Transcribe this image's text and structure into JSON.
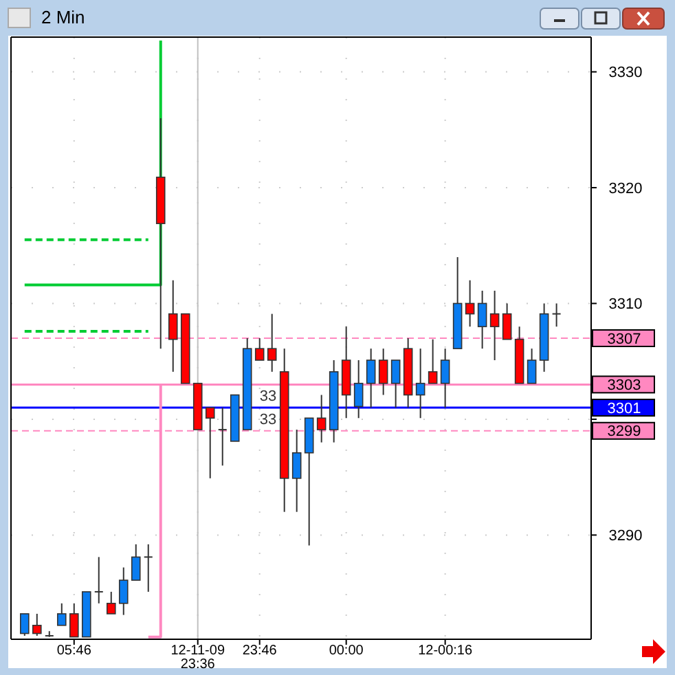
{
  "chart_data": {
    "type": "candlestick",
    "title": "2 Min",
    "categories": [
      null,
      null,
      null,
      null,
      "05:46",
      null,
      null,
      null,
      null,
      null,
      null,
      null,
      null,
      null,
      "12-11-09 23:36",
      null,
      null,
      null,
      null,
      "23:46",
      null,
      null,
      null,
      null,
      null,
      null,
      "00:00",
      null,
      null,
      null,
      null,
      null,
      null,
      null,
      "12-00:16",
      null,
      null,
      null,
      null,
      null,
      null,
      null,
      null,
      null
    ],
    "ohlc": [
      [
        3281.5,
        3283.2,
        3281.3,
        3283.2
      ],
      [
        3282.2,
        3283.2,
        3281.3,
        3281.5
      ],
      [
        3281.3,
        3281.7,
        3281.2,
        3281.3
      ],
      [
        3282.2,
        3284.1,
        3282.2,
        3283.2
      ],
      [
        3283.2,
        3284.1,
        3281.2,
        3281.2
      ],
      [
        3281.2,
        3285.1,
        3281.2,
        3285.1
      ],
      [
        3285.1,
        3288.1,
        3284.1,
        3285.1
      ],
      [
        3284.1,
        3285.1,
        3283.2,
        3283.2
      ],
      [
        3284.1,
        3287.2,
        3283.1,
        3286.1
      ],
      [
        3286.1,
        3289.2,
        3286.1,
        3288.1
      ],
      [
        3288.1,
        3289.2,
        3285.1,
        3288.1
      ],
      [
        3320.9,
        3326,
        3306.1,
        3316.9
      ],
      [
        3309.1,
        3312,
        3304.1,
        3306.9
      ],
      [
        3309.1,
        3309.1,
        3303.1,
        3303.1
      ],
      [
        3303.1,
        3303.1,
        3299.1,
        3299.1
      ],
      [
        3301,
        3301,
        3294.9,
        3300.1
      ],
      [
        3299.1,
        3301,
        3296,
        3299.1
      ],
      [
        3298.1,
        3302.1,
        3298.1,
        3302.1
      ],
      [
        3299.1,
        3307,
        3299.1,
        3306.1
      ],
      [
        3306.1,
        3307,
        3305.1,
        3305.1
      ],
      [
        3306.1,
        3309.1,
        3304.1,
        3305.1
      ],
      [
        3304.1,
        3306.1,
        3292,
        3294.9
      ],
      [
        3294.9,
        3299.1,
        3292,
        3297.1
      ],
      [
        3297.1,
        3300.1,
        3289.1,
        3300.1
      ],
      [
        3300.1,
        3302.1,
        3298,
        3299.1
      ],
      [
        3299.1,
        3305.1,
        3298,
        3304.1
      ],
      [
        3305.1,
        3308,
        3300.1,
        3302.1
      ],
      [
        3301.1,
        3305.1,
        3300.1,
        3303.1
      ],
      [
        3303.1,
        3306.1,
        3301,
        3305.1
      ],
      [
        3305.1,
        3306.1,
        3302.1,
        3303.1
      ],
      [
        3303.1,
        3305.1,
        3301,
        3305.1
      ],
      [
        3306.1,
        3307,
        3301,
        3302.1
      ],
      [
        3302.1,
        3306.1,
        3300.1,
        3303.1
      ],
      [
        3304.1,
        3306.9,
        3303.1,
        3303.1
      ],
      [
        3303.1,
        3306.1,
        3301,
        3305.1
      ],
      [
        3306.1,
        3314,
        3306.1,
        3310
      ],
      [
        3310,
        3312,
        3308,
        3309.1
      ],
      [
        3308,
        3311.1,
        3306.1,
        3310
      ],
      [
        3309.1,
        3311.1,
        3305.1,
        3308
      ],
      [
        3309.1,
        3310,
        3306.9,
        3306.9
      ],
      [
        3306.9,
        3308,
        3303.1,
        3303.1
      ],
      [
        3303.1,
        3306.1,
        3303.1,
        3305.1
      ],
      [
        3305.1,
        3310,
        3304.1,
        3309.1
      ],
      [
        3309.1,
        3310,
        3308,
        3309.1
      ]
    ],
    "colors": [
      "#0a7cf0",
      "#ff0000",
      "#333333",
      "#0a7cf0",
      "#ff0000",
      "#0a7cf0",
      "#333333",
      "#ff0000",
      "#0a7cf0",
      "#0a7cf0",
      "#333333",
      "#ff0000",
      "#ff0000",
      "#ff0000",
      "#ff0000",
      "#ff0000",
      "#333333",
      "#0a7cf0",
      "#0a7cf0",
      "#ff0000",
      "#ff0000",
      "#ff0000",
      "#0a7cf0",
      "#0a7cf0",
      "#ff0000",
      "#0a7cf0",
      "#ff0000",
      "#0a7cf0",
      "#0a7cf0",
      "#ff0000",
      "#0a7cf0",
      "#ff0000",
      "#0a7cf0",
      "#ff0000",
      "#0a7cf0",
      "#0a7cf0",
      "#ff0000",
      "#0a7cf0",
      "#ff0000",
      "#ff0000",
      "#ff0000",
      "#0a7cf0",
      "#0a7cf0",
      "#333333"
    ],
    "series": [
      {
        "type": "step",
        "color": "#00cc33",
        "values": [
          3311.6,
          3311.6,
          3311.6,
          3311.6,
          3311.6,
          3311.6,
          3311.6,
          3311.6,
          3311.6,
          3311.6,
          3311.6,
          3332.7,
          null,
          null,
          null,
          null,
          null,
          null,
          null,
          null,
          null,
          null,
          null,
          null,
          null,
          null,
          null,
          null,
          null,
          null,
          null,
          null,
          null,
          null,
          null,
          null,
          null,
          null,
          null,
          null,
          null,
          null,
          null,
          null
        ]
      },
      {
        "type": "line",
        "color": "#00cc33",
        "line_style": "dashed",
        "values": [
          3315.5,
          3315.5,
          3315.5,
          3315.5,
          3315.5,
          3315.5,
          3315.5,
          3315.5,
          3315.5,
          3315.5,
          3315.5,
          null,
          null,
          null,
          null,
          null,
          null,
          null,
          null,
          null,
          null,
          null,
          null,
          null,
          null,
          null,
          null,
          null,
          null,
          null,
          null,
          null,
          null,
          null,
          null,
          null,
          null,
          null,
          null,
          null,
          null,
          null,
          null,
          null
        ]
      },
      {
        "type": "line",
        "color": "#00cc33",
        "line_style": "dashed",
        "values": [
          3307.6,
          3307.6,
          3307.6,
          3307.6,
          3307.6,
          3307.6,
          3307.6,
          3307.6,
          3307.6,
          3307.6,
          3307.6,
          null,
          null,
          null,
          null,
          null,
          null,
          null,
          null,
          null,
          null,
          null,
          null,
          null,
          null,
          null,
          null,
          null,
          null,
          null,
          null,
          null,
          null,
          null,
          null,
          null,
          null,
          null,
          null,
          null,
          null,
          null,
          null,
          null
        ]
      },
      {
        "type": "step",
        "color": "#ff88c0",
        "values": [
          null,
          null,
          null,
          null,
          null,
          null,
          null,
          null,
          null,
          null,
          3281.2,
          3303,
          null,
          null,
          null,
          null,
          null,
          null,
          null,
          null,
          null,
          null,
          null,
          null,
          null,
          null,
          null,
          null,
          null,
          null,
          null,
          null,
          null,
          null,
          null,
          null,
          null,
          null,
          null,
          null,
          null,
          null,
          null,
          null
        ]
      }
    ],
    "ref_lines": [
      {
        "axis": "x",
        "value": "12-11-09 23:36",
        "color": "#c0c0c0",
        "line_style": "solid"
      },
      {
        "axis": "y",
        "value": 3307,
        "label": "3307",
        "color": "#ff88c0",
        "line_style": "dashed"
      },
      {
        "axis": "y",
        "value": 3303,
        "label": "3303",
        "color": "#ff88c0",
        "line_style": "solid"
      },
      {
        "axis": "y",
        "value": 3301,
        "label": "3301",
        "color": "#0000ff",
        "line_style": "solid"
      },
      {
        "axis": "y",
        "value": 3299,
        "label": "3299",
        "color": "#ff88c0",
        "line_style": "dashed"
      }
    ],
    "annotations": [
      "33",
      "33"
    ],
    "ylim": [
      3281,
      3333
    ],
    "yticks": [
      3290,
      {
        "value": 3300,
        "label": null
      },
      3310,
      3320,
      3330
    ],
    "grid": true
  }
}
